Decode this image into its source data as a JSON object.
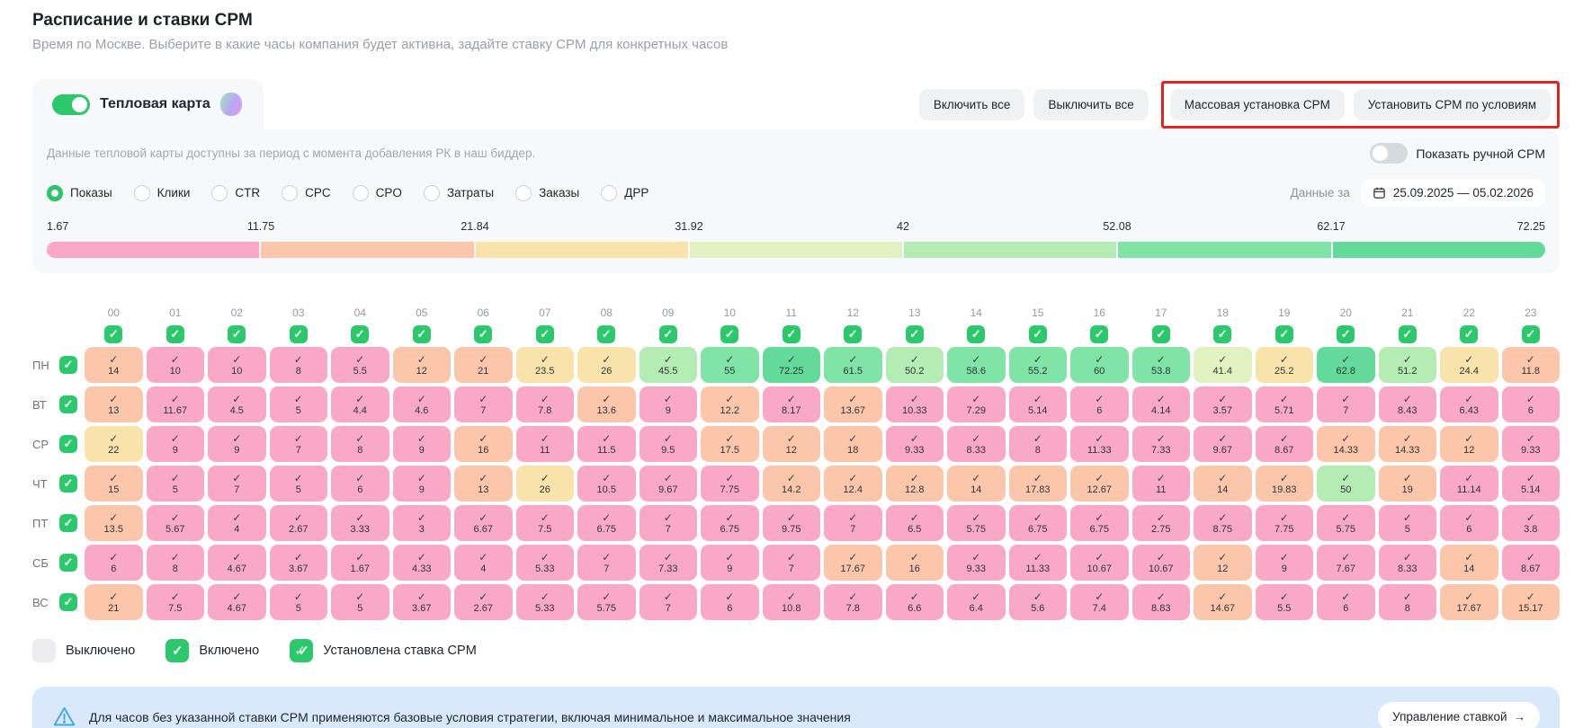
{
  "page": {
    "title": "Расписание и ставки CPM",
    "subtitle": "Время по Москве. Выберите в какие часы компания будет активна, задайте ставку CPM для конкретных часов"
  },
  "heatmap_tab": {
    "label": "Тепловая карта",
    "toggle_state": "on",
    "icon": "gradient-blob-icon"
  },
  "toolbar": {
    "enable_all": "Включить все",
    "disable_all": "Выключить все",
    "mass_cpm": "Массовая установка CPM",
    "cpm_by_conditions": "Установить CPM по условиям",
    "annotation_color": "#e3241c"
  },
  "card": {
    "info_text": "Данные тепловой карты доступны за период с момента добавления РК в наш биддер.",
    "manual_cpm_toggle": {
      "label": "Показать ручной CPM",
      "state": "off"
    },
    "metrics": [
      {
        "label": "Показы",
        "selected": true
      },
      {
        "label": "Клики",
        "selected": false
      },
      {
        "label": "CTR",
        "selected": false
      },
      {
        "label": "CPC",
        "selected": false
      },
      {
        "label": "CPO",
        "selected": false
      },
      {
        "label": "Затраты",
        "selected": false
      },
      {
        "label": "Заказы",
        "selected": false
      },
      {
        "label": "ДРР",
        "selected": false
      }
    ],
    "period": {
      "label": "Данные за",
      "value": "25.09.2025 — 05.02.2026",
      "icon": "calendar-icon"
    },
    "scale": {
      "ticks": [
        "1.67",
        "11.75",
        "21.84",
        "31.92",
        "42",
        "52.08",
        "62.17",
        "72.25"
      ],
      "colors": [
        "#f9a9c6",
        "#fbc6aa",
        "#f8e3ab",
        "#e0f2bf",
        "#b5ecb3",
        "#7fe4a6",
        "#63da9a"
      ]
    }
  },
  "chart_data": {
    "type": "heatmap",
    "x": [
      "00",
      "01",
      "02",
      "03",
      "04",
      "05",
      "06",
      "07",
      "08",
      "09",
      "10",
      "11",
      "12",
      "13",
      "14",
      "15",
      "16",
      "17",
      "18",
      "19",
      "20",
      "21",
      "22",
      "23"
    ],
    "y": [
      "ПН",
      "ВТ",
      "СР",
      "ЧТ",
      "ПТ",
      "СБ",
      "ВС"
    ],
    "metric": "Показы",
    "value_range": [
      1.67,
      72.25
    ],
    "series": [
      {
        "name": "ПН",
        "values": [
          "14",
          "10",
          "10",
          "8",
          "5.5",
          "12",
          "21",
          "23.5",
          "26",
          "45.5",
          "55",
          "72.25",
          "61.5",
          "50.2",
          "58.6",
          "55.2",
          "60",
          "53.8",
          "41.4",
          "25.2",
          "62.8",
          "51.2",
          "24.4",
          "11.8"
        ]
      },
      {
        "name": "ВТ",
        "values": [
          "13",
          "11.67",
          "4.5",
          "5",
          "4.4",
          "4.6",
          "7",
          "7.8",
          "13.6",
          "9",
          "12.2",
          "8.17",
          "13.67",
          "10.33",
          "7.29",
          "5.14",
          "6",
          "4.14",
          "3.57",
          "5.71",
          "7",
          "8.43",
          "6.43",
          "6"
        ]
      },
      {
        "name": "СР",
        "values": [
          "22",
          "9",
          "9",
          "7",
          "8",
          "9",
          "16",
          "11",
          "11.5",
          "9.5",
          "17.5",
          "12",
          "18",
          "9.33",
          "8.33",
          "8",
          "11.33",
          "7.33",
          "9.67",
          "8.67",
          "14.33",
          "14.33",
          "12",
          "9.33"
        ]
      },
      {
        "name": "ЧТ",
        "values": [
          "15",
          "5",
          "7",
          "5",
          "6",
          "9",
          "13",
          "26",
          "10.5",
          "9.67",
          "7.75",
          "14.2",
          "12.4",
          "12.8",
          "14",
          "17.83",
          "12.67",
          "11",
          "14",
          "19.83",
          "50",
          "19",
          "11.14",
          "5.14"
        ]
      },
      {
        "name": "ПТ",
        "values": [
          "13.5",
          "5.67",
          "4",
          "2.67",
          "3.33",
          "3",
          "6.67",
          "7.5",
          "6.75",
          "7",
          "6.75",
          "9.75",
          "7",
          "6.5",
          "5.75",
          "6.75",
          "6.75",
          "2.75",
          "8.75",
          "7.75",
          "5.75",
          "5",
          "6",
          "3.8"
        ]
      },
      {
        "name": "СБ",
        "values": [
          "6",
          "8",
          "4.67",
          "3.67",
          "1.67",
          "4.33",
          "4",
          "5.33",
          "7",
          "7.33",
          "9",
          "7",
          "17.67",
          "16",
          "9.33",
          "11.33",
          "10.67",
          "10.67",
          "12",
          "9",
          "7.67",
          "8.33",
          "14",
          "8.67"
        ]
      },
      {
        "name": "ВС",
        "values": [
          "21",
          "7.5",
          "4.67",
          "5",
          "5",
          "3.67",
          "2.67",
          "5.33",
          "5.75",
          "7",
          "6",
          "10.8",
          "7.8",
          "6.6",
          "6.4",
          "5.6",
          "7.4",
          "8.83",
          "14.67",
          "5.5",
          "6",
          "8",
          "17.67",
          "15.17"
        ]
      }
    ],
    "all_hours_checked": true,
    "all_days_checked": true,
    "checkbox_color": "#2bc96c",
    "cell_check_glyph": "✓"
  },
  "legend": [
    {
      "label": "Выключено",
      "type": "off"
    },
    {
      "label": "Включено",
      "type": "on"
    },
    {
      "label": "Установлена ставка CPM",
      "type": "set"
    }
  ],
  "banner": {
    "icon": "warning-icon",
    "text": "Для часов без указанной ставки CPM применяются базовые условия стратегии, включая минимальное и максимальное значения",
    "button": "Управление ставкой",
    "arrow": "→"
  }
}
